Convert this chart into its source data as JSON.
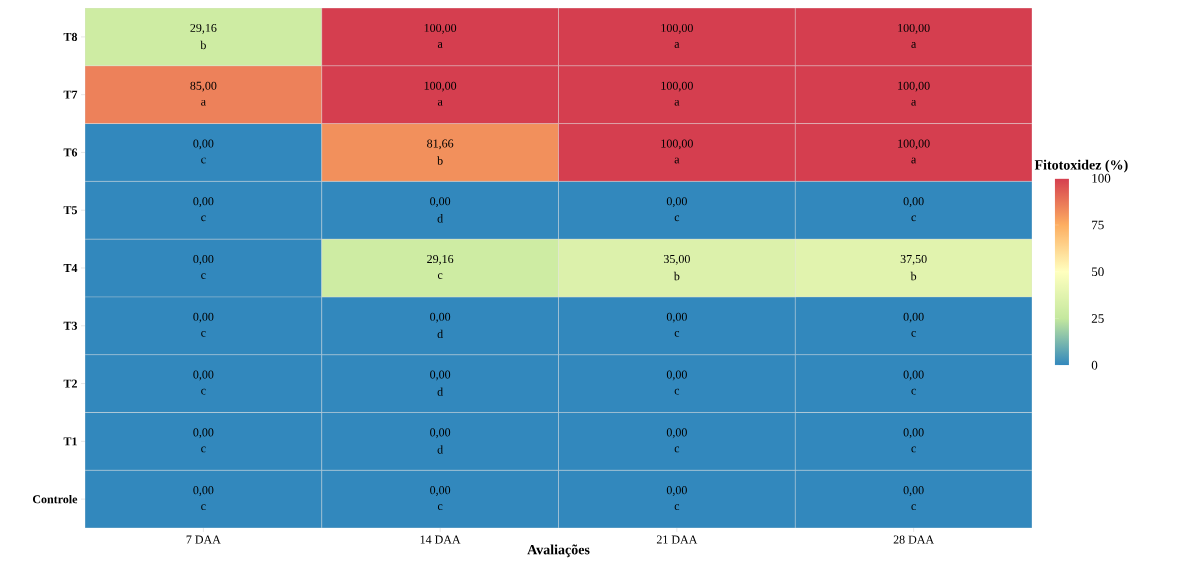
{
  "chart_data": {
    "type": "heatmap",
    "xlabel": "Avaliações",
    "clabel": "Fitotoxidez (%)",
    "categories": [
      "7 DAA",
      "14 DAA",
      "21 DAA",
      "28 DAA"
    ],
    "y_categories": [
      "T8",
      "T7",
      "T6",
      "T5",
      "T4",
      "T3",
      "T2",
      "T1",
      "Controle"
    ],
    "cells": [
      [
        29.16,
        100,
        100,
        100
      ],
      [
        85,
        100,
        100,
        100
      ],
      [
        0,
        81.66,
        100,
        100
      ],
      [
        0,
        0,
        0,
        0
      ],
      [
        0,
        29.16,
        35,
        37.5
      ],
      [
        0,
        0,
        0,
        0
      ],
      [
        0,
        0,
        0,
        0
      ],
      [
        0,
        0,
        0,
        0
      ],
      [
        0,
        0,
        0,
        0
      ]
    ],
    "cell_labels": [
      [
        "29,16",
        "100,00",
        "100,00",
        "100,00"
      ],
      [
        "85,00",
        "100,00",
        "100,00",
        "100,00"
      ],
      [
        "0,00",
        "81,66",
        "100,00",
        "100,00"
      ],
      [
        "0,00",
        "0,00",
        "0,00",
        "0,00"
      ],
      [
        "0,00",
        "29,16",
        "35,00",
        "37,50"
      ],
      [
        "0,00",
        "0,00",
        "0,00",
        "0,00"
      ],
      [
        "0,00",
        "0,00",
        "0,00",
        "0,00"
      ],
      [
        "0,00",
        "0,00",
        "0,00",
        "0,00"
      ],
      [
        "0,00",
        "0,00",
        "0,00",
        "0,00"
      ]
    ],
    "clim": [
      0,
      100
    ],
    "cticks": [
      0,
      25,
      50,
      75,
      100
    ],
    "annotations": [
      "b",
      "a",
      "a",
      "a",
      "a",
      "a",
      "a",
      "a",
      "c",
      "b",
      "a",
      "a",
      "c",
      "d",
      "c",
      "c",
      "c",
      "c",
      "b",
      "b",
      "c",
      "d",
      "c",
      "c",
      "c",
      "d",
      "c",
      "c",
      "c",
      "d",
      "c",
      "c",
      "c",
      "c",
      "c",
      "c"
    ]
  }
}
